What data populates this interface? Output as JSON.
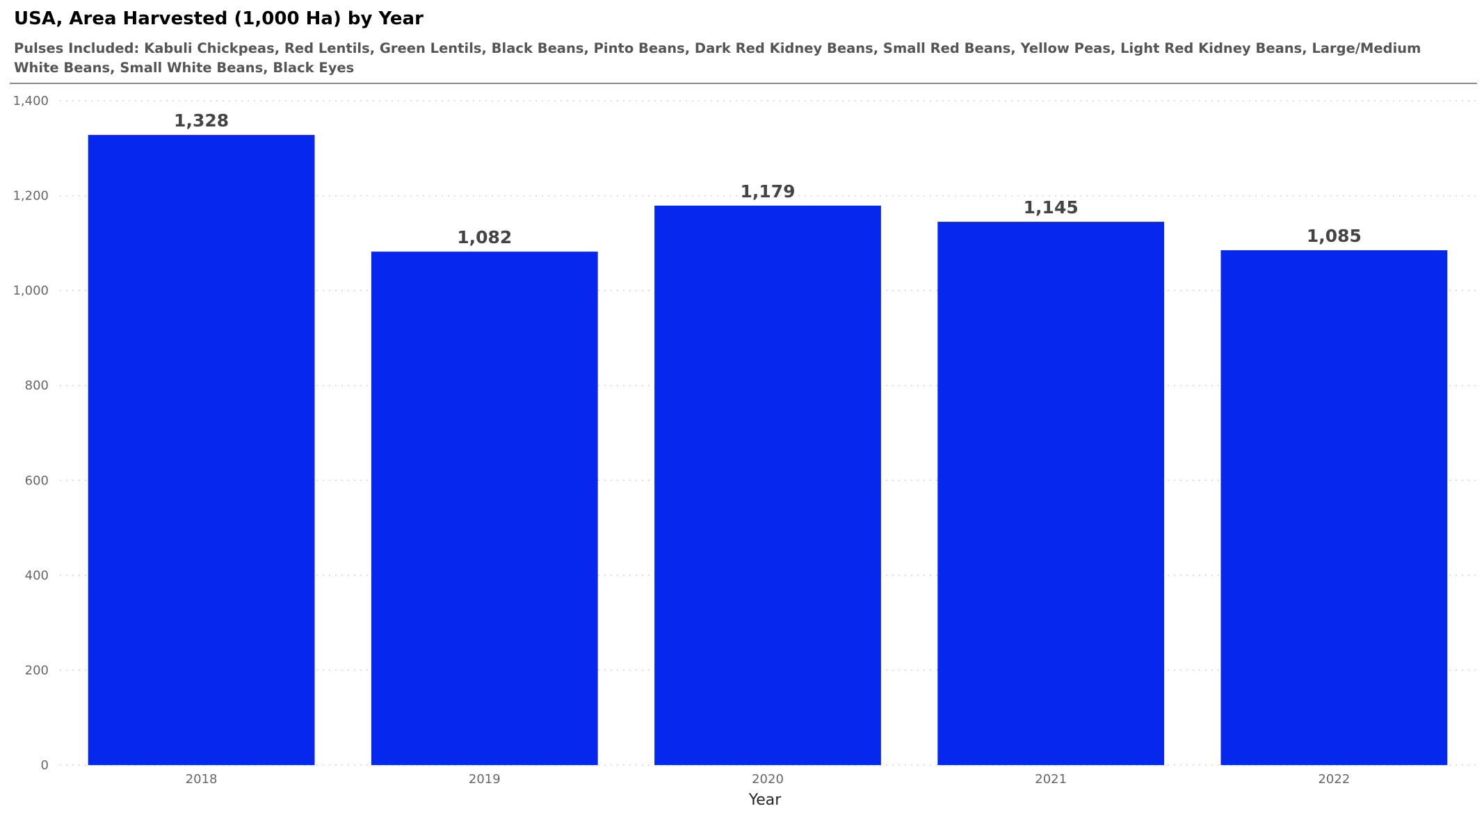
{
  "header": {
    "title": "USA, Area Harvested (1,000 Ha) by Year",
    "subtitle": "Pulses Included: Kabuli Chickpeas, Red Lentils, Green Lentils, Black Beans, Pinto Beans, Dark Red Kidney Beans, Small Red Beans, Yellow Peas, Light Red Kidney Beans, Large/Medium White Beans, Small White Beans, Black Eyes"
  },
  "chart_data": {
    "type": "bar",
    "title": "USA, Area Harvested (1,000 Ha) by Year",
    "subtitle": "Pulses Included: Kabuli Chickpeas, Red Lentils, Green Lentils, Black Beans, Pinto Beans, Dark Red Kidney Beans, Small Red Beans, Yellow Peas, Light Red Kidney Beans, Large/Medium White Beans, Small White Beans, Black Eyes",
    "xlabel": "Year",
    "ylabel": "",
    "categories": [
      "2018",
      "2019",
      "2020",
      "2021",
      "2022"
    ],
    "values": [
      1328,
      1082,
      1179,
      1145,
      1085
    ],
    "value_labels": [
      "1,328",
      "1,082",
      "1,179",
      "1,145",
      "1,085"
    ],
    "ylim": [
      0,
      1400
    ],
    "yticks": [
      0,
      200,
      400,
      600,
      800,
      1000,
      1200,
      1400
    ],
    "ytick_labels": [
      "0",
      "200",
      "400",
      "600",
      "800",
      "1,000",
      "1,200",
      "1,400"
    ],
    "grid": true,
    "legend": "none",
    "bar_color": "#0527EE"
  }
}
